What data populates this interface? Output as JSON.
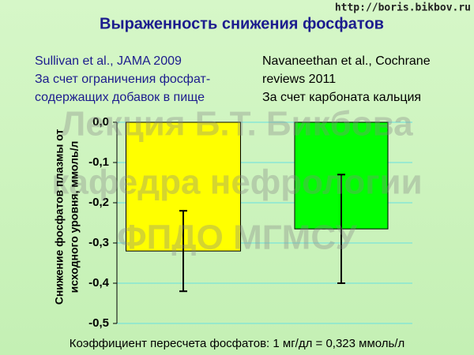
{
  "header": {
    "url": "http://boris.bikbov.ru",
    "title": "Выраженность снижения фосфатов"
  },
  "annotations": {
    "left": [
      "Sullivan et al., JAMA 2009",
      "За счет ограничения фосфат-",
      "содержащих добавок в пище"
    ],
    "right": [
      "Navaneethan et al., Cochrane",
      "reviews 2011",
      "За счет карбоната кальция"
    ]
  },
  "watermark": [
    "Лекция Б.Т. Бикбова",
    "кафедра нефрологии",
    "ФПДО МГМСУ"
  ],
  "footer": "Коэффициент пересчета фосфатов: 1 мг/дл = 0,323 ммоль/л",
  "chart_data": {
    "type": "bar",
    "ylabel": [
      "Снижение фосфатов плазмы от",
      "исходного уровня, ммоль/л"
    ],
    "values": [
      -0.32,
      -0.265
    ],
    "errors": [
      0.1,
      0.135
    ],
    "colors": [
      "#ffff00",
      "#00ff00"
    ],
    "ylim": [
      -0.5,
      0
    ],
    "yticks": [
      {
        "value": 0,
        "label": "0,0"
      },
      {
        "value": -0.1,
        "label": "-0,1"
      },
      {
        "value": -0.2,
        "label": "-0,2"
      },
      {
        "value": -0.3,
        "label": "-0,3"
      },
      {
        "value": -0.4,
        "label": "-0,4"
      },
      {
        "value": -0.5,
        "label": "-0,5"
      }
    ],
    "grid": true
  }
}
